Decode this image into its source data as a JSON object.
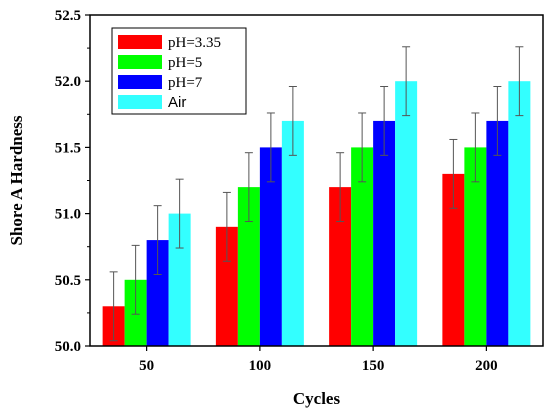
{
  "chart_data": {
    "type": "bar",
    "title": "",
    "xlabel": "Cycles",
    "ylabel": "Shore A Hardness",
    "categories": [
      "50",
      "100",
      "150",
      "200"
    ],
    "ylim": [
      50.0,
      52.5
    ],
    "yticks": [
      "50.0",
      "50.5",
      "51.0",
      "51.5",
      "52.0",
      "52.5"
    ],
    "legend_position": "top-left",
    "grid": false,
    "series": [
      {
        "name": "pH=3.35",
        "color": "#ff0000",
        "values": [
          50.3,
          50.9,
          51.2,
          51.3
        ],
        "errors": [
          0.26,
          0.26,
          0.26,
          0.26
        ]
      },
      {
        "name": "pH=5",
        "color": "#00ff00",
        "values": [
          50.5,
          51.2,
          51.5,
          51.5
        ],
        "errors": [
          0.26,
          0.26,
          0.26,
          0.26
        ]
      },
      {
        "name": "pH=7",
        "color": "#0000ff",
        "values": [
          50.8,
          51.5,
          51.7,
          51.7
        ],
        "errors": [
          0.26,
          0.26,
          0.26,
          0.26
        ]
      },
      {
        "name": "Air",
        "color": "#33ffff",
        "values": [
          51.0,
          51.7,
          52.0,
          52.0
        ],
        "errors": [
          0.26,
          0.26,
          0.26,
          0.26
        ]
      }
    ]
  }
}
